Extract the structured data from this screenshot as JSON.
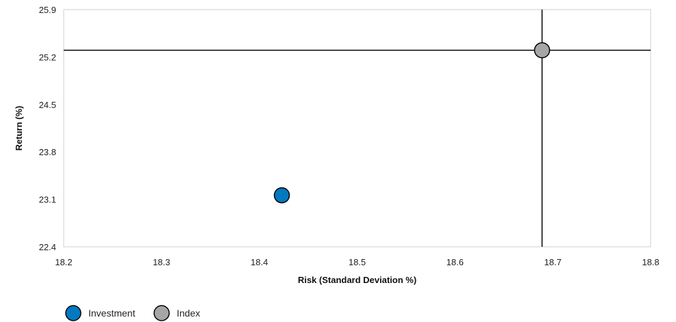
{
  "chart_data": {
    "type": "scatter",
    "title": "",
    "xlabel": "Risk (Standard Deviation %)",
    "ylabel": "Return (%)",
    "xlim": [
      18.2,
      18.8
    ],
    "ylim": [
      22.4,
      25.9
    ],
    "x_ticks": [
      "18.2",
      "18.3",
      "18.4",
      "18.5",
      "18.6",
      "18.7",
      "18.8"
    ],
    "y_ticks": [
      "22.4",
      "23.1",
      "23.8",
      "24.5",
      "25.2",
      "25.9"
    ],
    "grid": false,
    "legend_position": "bottom-left",
    "series": [
      {
        "name": "Investment",
        "x": 18.423,
        "y": 23.16,
        "color": "#0079c1"
      },
      {
        "name": "Index",
        "x": 18.689,
        "y": 25.3,
        "color": "#a6a6a6"
      }
    ],
    "crosshair": {
      "series": "Index",
      "color": "#000000"
    }
  }
}
